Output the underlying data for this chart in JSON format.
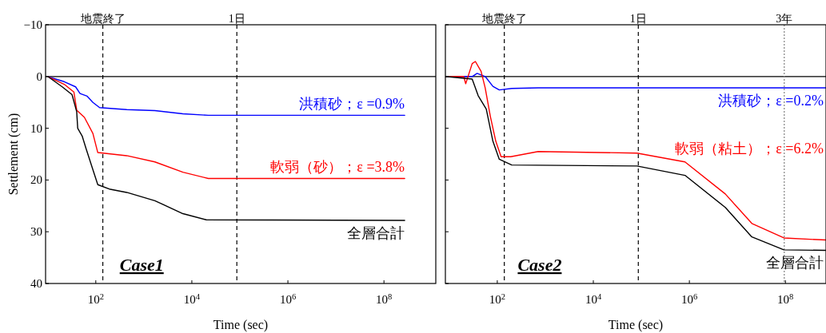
{
  "chart_data": [
    {
      "type": "line",
      "title": "Case1",
      "xlabel": "Time (sec)",
      "ylabel": "Settlement (cm)",
      "log": "x",
      "grid": false,
      "line_style": "solid",
      "marker": "none",
      "xlim": [
        9,
        1200000000
      ],
      "ylim": [
        40,
        -10
      ],
      "xticks": [
        {
          "value": 100,
          "label": "10$^{2}$"
        },
        {
          "value": 10000,
          "label": "10$^{4}$"
        },
        {
          "value": 1000000,
          "label": "10$^{6}$"
        },
        {
          "value": 100000000,
          "label": "10$^{8}$"
        }
      ],
      "yticks": [
        {
          "value": -10,
          "label": "−10"
        },
        0,
        10,
        20,
        30,
        40
      ],
      "ref_lines": [
        {
          "axis": "y",
          "value": 0,
          "label": null,
          "color": "#000000",
          "line_style": "solid"
        },
        {
          "axis": "x",
          "value": 140,
          "label": "地震終了",
          "color": "#000000",
          "line_style": "dashed"
        },
        {
          "axis": "x",
          "value": 86400,
          "label": "1日",
          "color": "#000000",
          "line_style": "dashed"
        }
      ],
      "series": [
        {
          "name": "洪積砂；ε =0.9%",
          "color": "#0000ff",
          "x": [
            10,
            22,
            38,
            47,
            66,
            87,
            120,
            440,
            1700,
            6500,
            22000,
            270000000
          ],
          "values": [
            0,
            1,
            2,
            3.3,
            3.8,
            5,
            6,
            6.4,
            6.6,
            7.2,
            7.5,
            7.5
          ]
        },
        {
          "name": "軟弱（砂）；ε =3.8%",
          "color": "#ff0000",
          "x": [
            10,
            22,
            35,
            40,
            58,
            87,
            110,
            440,
            1700,
            6500,
            22000,
            270000000
          ],
          "values": [
            0,
            1.5,
            3,
            6.5,
            7.9,
            11,
            14.7,
            15.3,
            16.5,
            18.5,
            19.7,
            19.7
          ]
        },
        {
          "name": "全層合計",
          "color": "#000000",
          "x": [
            10,
            20,
            32,
            40,
            42,
            52,
            63,
            87,
            110,
            200,
            440,
            1700,
            6500,
            20000,
            270000000
          ],
          "values": [
            0,
            2,
            3.5,
            6.8,
            10,
            11.5,
            14,
            18,
            20.9,
            21.8,
            22.4,
            24,
            26.5,
            27.7,
            27.8
          ]
        }
      ]
    },
    {
      "type": "line",
      "title": "Case2",
      "xlabel": "Time (sec)",
      "log": "x",
      "grid": false,
      "line_style": "solid",
      "marker": "none",
      "tick_labels": "x",
      "xlim": [
        8.3,
        700000000
      ],
      "ylim": [
        40,
        -10
      ],
      "xticks": [
        {
          "value": 100,
          "label": "10$^{2}$"
        },
        {
          "value": 10000,
          "label": "10$^{4}$"
        },
        {
          "value": 1000000,
          "label": "10$^{6}$"
        },
        {
          "value": 100000000,
          "label": "10$^{8}$"
        }
      ],
      "yticks": [
        -10,
        0,
        10,
        20,
        30,
        40
      ],
      "ref_lines": [
        {
          "axis": "y",
          "value": 0,
          "label": null,
          "color": "#000000",
          "line_style": "solid"
        },
        {
          "axis": "x",
          "value": 140,
          "label": "地震終了",
          "color": "#000000",
          "line_style": "dashed"
        },
        {
          "axis": "x",
          "value": 86400,
          "label": "1日",
          "color": "#000000",
          "line_style": "dashed"
        },
        {
          "axis": "x",
          "value": 94600000,
          "label": "3年",
          "color": "#808080",
          "line_style": "dotted"
        }
      ],
      "series": [
        {
          "name": "洪積砂；ε =0.2%",
          "color": "#0000ff",
          "x": [
            8.3,
            30,
            38,
            56,
            81,
            110,
            200,
            710,
            700000000
          ],
          "values": [
            0,
            0,
            -0.6,
            0,
            1.9,
            2.6,
            2.3,
            2.2,
            2.2
          ]
        },
        {
          "name": "軟弱（粘土）；ε =6.2%",
          "color": "#ff0000",
          "x": [
            8.3,
            20,
            22,
            30,
            35,
            46,
            56,
            72,
            93,
            120,
            190,
            710,
            81000,
            810000,
            5600000,
            20000000,
            93000000,
            700000000
          ],
          "values": [
            0,
            0,
            1.4,
            -2.5,
            -2.9,
            -1,
            2.2,
            7.8,
            12.5,
            15.5,
            15.5,
            14.5,
            14.8,
            16.5,
            22.7,
            28.4,
            31.2,
            31.6
          ]
        },
        {
          "name": "全層合計",
          "color": "#000000",
          "x": [
            8.3,
            30,
            40,
            59,
            81,
            110,
            200,
            81000,
            810000,
            5600000,
            20000000,
            93000000,
            700000000
          ],
          "values": [
            0,
            0.5,
            3.7,
            6.3,
            12.5,
            16,
            17.1,
            17.3,
            19.1,
            25.3,
            31,
            33.5,
            33.6
          ]
        }
      ]
    }
  ]
}
